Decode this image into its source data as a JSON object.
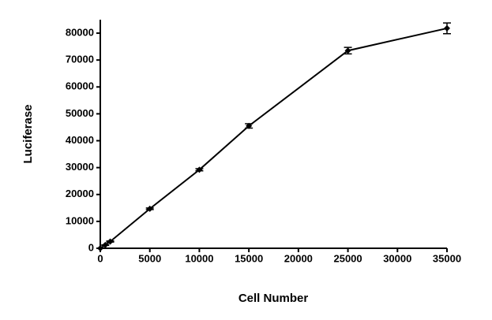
{
  "chart_data": {
    "type": "line",
    "x_label": "Cell Number",
    "y_label": "Luciferase",
    "x": [
      0,
      500,
      1000,
      5000,
      10000,
      15000,
      25000,
      35000
    ],
    "values": [
      0,
      1200,
      2500,
      14700,
      29200,
      45500,
      73500,
      81800
    ],
    "errors": [
      0,
      100,
      200,
      300,
      400,
      800,
      1200,
      2000
    ],
    "color": "#000000",
    "xlim": [
      0,
      35000
    ],
    "xticks": [
      0,
      5000,
      10000,
      15000,
      20000,
      25000,
      30000,
      35000
    ],
    "ylim": [
      0,
      85000
    ],
    "yticks": [
      0,
      10000,
      20000,
      30000,
      40000,
      50000,
      60000,
      70000,
      80000
    ]
  }
}
